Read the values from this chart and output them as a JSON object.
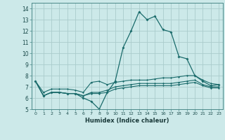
{
  "xlabel": "Humidex (Indice chaleur)",
  "background_color": "#cce9e9",
  "grid_color": "#aacccc",
  "line_color": "#1a6b6b",
  "xlim": [
    -0.5,
    23.5
  ],
  "ylim": [
    5,
    14.5
  ],
  "yticks": [
    5,
    6,
    7,
    8,
    9,
    10,
    11,
    12,
    13,
    14
  ],
  "xticks": [
    0,
    1,
    2,
    3,
    4,
    5,
    6,
    7,
    8,
    9,
    10,
    11,
    12,
    13,
    14,
    15,
    16,
    17,
    18,
    19,
    20,
    21,
    22,
    23
  ],
  "series_main": [
    7.5,
    6.2,
    6.5,
    6.5,
    6.4,
    6.4,
    6.0,
    5.7,
    5.0,
    6.5,
    7.5,
    10.5,
    12.0,
    13.7,
    13.0,
    13.3,
    12.1,
    11.9,
    9.7,
    9.5,
    8.0,
    7.5,
    7.1,
    7.2
  ],
  "series_upper": [
    7.5,
    6.5,
    6.8,
    6.8,
    6.8,
    6.7,
    6.5,
    7.4,
    7.5,
    7.2,
    7.4,
    7.5,
    7.6,
    7.6,
    7.6,
    7.7,
    7.8,
    7.8,
    7.9,
    8.0,
    8.0,
    7.6,
    7.3,
    7.2
  ],
  "series_lower1": [
    7.5,
    6.2,
    6.5,
    6.5,
    6.4,
    6.4,
    6.2,
    6.5,
    6.5,
    6.7,
    7.0,
    7.1,
    7.2,
    7.3,
    7.3,
    7.3,
    7.3,
    7.3,
    7.4,
    7.5,
    7.6,
    7.2,
    7.0,
    7.0
  ],
  "series_lower2": [
    7.5,
    6.2,
    6.5,
    6.5,
    6.4,
    6.4,
    6.2,
    6.4,
    6.4,
    6.5,
    6.8,
    6.9,
    7.0,
    7.1,
    7.1,
    7.1,
    7.1,
    7.1,
    7.2,
    7.3,
    7.4,
    7.1,
    6.9,
    6.9
  ]
}
